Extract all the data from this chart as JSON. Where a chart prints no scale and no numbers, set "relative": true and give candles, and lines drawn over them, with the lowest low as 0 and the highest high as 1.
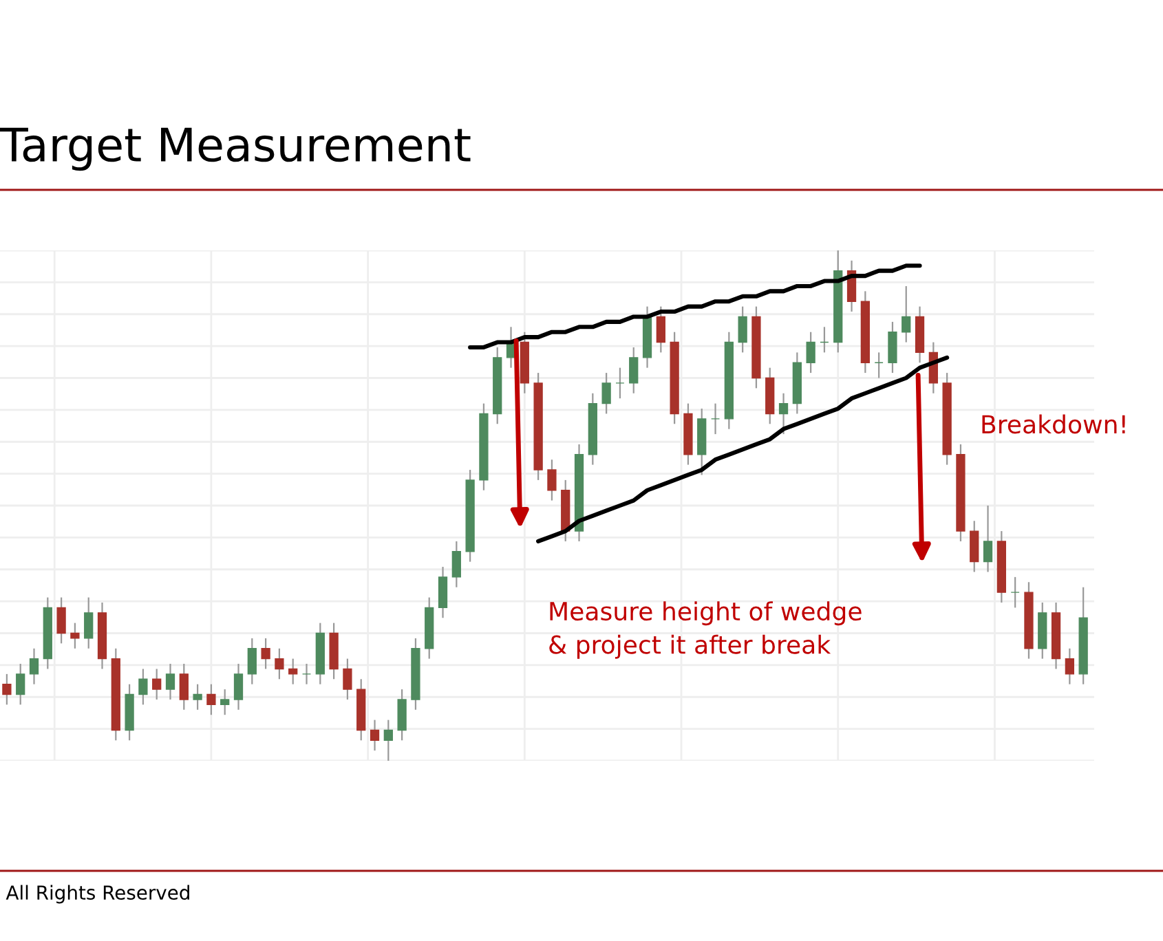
{
  "chart_data": {
    "type": "candlestick",
    "title": "Target Measurement",
    "relative": true,
    "grid": true,
    "annotations": [
      "Measure height of wedge\n& project it after break",
      "Breakdown!",
      "All Rights Reserved"
    ],
    "categories": [
      null,
      null,
      null,
      null,
      null,
      null,
      null,
      null,
      null,
      null,
      null,
      null,
      null,
      null,
      null,
      null,
      null,
      null,
      null,
      null,
      null,
      null,
      null,
      null,
      null,
      null,
      null,
      null,
      null,
      null,
      null,
      null,
      null,
      null,
      null,
      null,
      null,
      null,
      null,
      null,
      null,
      null,
      null,
      null,
      null,
      null,
      null,
      null,
      null,
      null,
      null,
      null,
      null,
      null,
      null,
      null,
      null,
      null,
      null,
      null,
      null,
      null,
      null,
      null,
      null,
      null,
      null,
      null,
      null,
      null,
      null,
      null,
      null,
      null,
      null,
      null,
      null,
      null,
      null,
      null
    ],
    "ohlc": [
      [
        0.15,
        0.17,
        0.11,
        0.13
      ],
      [
        0.13,
        0.19,
        0.11,
        0.17
      ],
      [
        0.17,
        0.22,
        0.15,
        0.2
      ],
      [
        0.2,
        0.32,
        0.18,
        0.3
      ],
      [
        0.3,
        0.32,
        0.23,
        0.25
      ],
      [
        0.25,
        0.27,
        0.22,
        0.24
      ],
      [
        0.24,
        0.32,
        0.22,
        0.29
      ],
      [
        0.29,
        0.31,
        0.18,
        0.2
      ],
      [
        0.2,
        0.22,
        0.04,
        0.06
      ],
      [
        0.06,
        0.15,
        0.04,
        0.13
      ],
      [
        0.13,
        0.18,
        0.11,
        0.16
      ],
      [
        0.16,
        0.18,
        0.12,
        0.14
      ],
      [
        0.14,
        0.19,
        0.12,
        0.17
      ],
      [
        0.17,
        0.19,
        0.1,
        0.12
      ],
      [
        0.12,
        0.15,
        0.1,
        0.13
      ],
      [
        0.13,
        0.15,
        0.09,
        0.11
      ],
      [
        0.11,
        0.14,
        0.09,
        0.12
      ],
      [
        0.12,
        0.19,
        0.1,
        0.17
      ],
      [
        0.17,
        0.24,
        0.15,
        0.22
      ],
      [
        0.22,
        0.24,
        0.18,
        0.2
      ],
      [
        0.2,
        0.22,
        0.16,
        0.18
      ],
      [
        0.18,
        0.2,
        0.15,
        0.17
      ],
      [
        0.17,
        0.19,
        0.15,
        0.17
      ],
      [
        0.17,
        0.27,
        0.15,
        0.25
      ],
      [
        0.25,
        0.27,
        0.16,
        0.18
      ],
      [
        0.18,
        0.2,
        0.12,
        0.14
      ],
      [
        0.14,
        0.16,
        0.04,
        0.06
      ],
      [
        0.06,
        0.08,
        0.02,
        0.04
      ],
      [
        0.04,
        0.08,
        0,
        0.06
      ],
      [
        0.06,
        0.14,
        0.04,
        0.12
      ],
      [
        0.12,
        0.24,
        0.1,
        0.22
      ],
      [
        0.22,
        0.32,
        0.2,
        0.3
      ],
      [
        0.3,
        0.38,
        0.28,
        0.36
      ],
      [
        0.36,
        0.43,
        0.34,
        0.41
      ],
      [
        0.41,
        0.57,
        0.39,
        0.55
      ],
      [
        0.55,
        0.7,
        0.53,
        0.68
      ],
      [
        0.68,
        0.81,
        0.66,
        0.79
      ],
      [
        0.79,
        0.85,
        0.77,
        0.82
      ],
      [
        0.82,
        0.84,
        0.72,
        0.74
      ],
      [
        0.74,
        0.76,
        0.55,
        0.57
      ],
      [
        0.57,
        0.59,
        0.51,
        0.53
      ],
      [
        0.53,
        0.55,
        0.43,
        0.45
      ],
      [
        0.45,
        0.62,
        0.43,
        0.6
      ],
      [
        0.6,
        0.72,
        0.58,
        0.7
      ],
      [
        0.7,
        0.76,
        0.68,
        0.74
      ],
      [
        0.74,
        0.77,
        0.71,
        0.74
      ],
      [
        0.74,
        0.81,
        0.72,
        0.79
      ],
      [
        0.79,
        0.89,
        0.77,
        0.87
      ],
      [
        0.87,
        0.89,
        0.8,
        0.82
      ],
      [
        0.82,
        0.84,
        0.66,
        0.68
      ],
      [
        0.68,
        0.7,
        0.58,
        0.6
      ],
      [
        0.6,
        0.69,
        0.56,
        0.67
      ],
      [
        0.67,
        0.7,
        0.64,
        0.67
      ],
      [
        0.67,
        0.84,
        0.65,
        0.82
      ],
      [
        0.82,
        0.89,
        0.8,
        0.87
      ],
      [
        0.87,
        0.89,
        0.73,
        0.75
      ],
      [
        0.75,
        0.77,
        0.66,
        0.68
      ],
      [
        0.68,
        0.72,
        0.64,
        0.7
      ],
      [
        0.7,
        0.8,
        0.68,
        0.78
      ],
      [
        0.78,
        0.84,
        0.76,
        0.82
      ],
      [
        0.82,
        0.85,
        0.8,
        0.82
      ],
      [
        0.82,
        1,
        0.8,
        0.96
      ],
      [
        0.96,
        0.98,
        0.88,
        0.9
      ],
      [
        0.9,
        0.92,
        0.76,
        0.78
      ],
      [
        0.78,
        0.8,
        0.75,
        0.78
      ],
      [
        0.78,
        0.86,
        0.76,
        0.84
      ],
      [
        0.84,
        0.93,
        0.82,
        0.87
      ],
      [
        0.87,
        0.89,
        0.78,
        0.8
      ],
      [
        0.8,
        0.82,
        0.72,
        0.74
      ],
      [
        0.74,
        0.76,
        0.58,
        0.6
      ],
      [
        0.6,
        0.62,
        0.43,
        0.45
      ],
      [
        0.45,
        0.47,
        0.37,
        0.39
      ],
      [
        0.39,
        0.5,
        0.37,
        0.43
      ],
      [
        0.43,
        0.45,
        0.31,
        0.33
      ],
      [
        0.33,
        0.36,
        0.3,
        0.33
      ],
      [
        0.33,
        0.35,
        0.2,
        0.22
      ],
      [
        0.22,
        0.31,
        0.2,
        0.29
      ],
      [
        0.29,
        0.31,
        0.18,
        0.2
      ],
      [
        0.2,
        0.22,
        0.15,
        0.17
      ],
      [
        0.17,
        0.34,
        0.15,
        0.28
      ]
    ],
    "series": [
      {
        "type": "line",
        "color": "#000000",
        "values": [
          null,
          null,
          null,
          null,
          null,
          null,
          null,
          null,
          null,
          null,
          null,
          null,
          null,
          null,
          null,
          null,
          null,
          null,
          null,
          null,
          null,
          null,
          null,
          null,
          null,
          null,
          null,
          null,
          null,
          null,
          null,
          null,
          null,
          null,
          0.81,
          0.81,
          0.82,
          0.82,
          0.83,
          0.83,
          0.84,
          0.84,
          0.85,
          0.85,
          0.86,
          0.86,
          0.87,
          0.87,
          0.88,
          0.88,
          0.89,
          0.89,
          0.9,
          0.9,
          0.91,
          0.91,
          0.92,
          0.92,
          0.93,
          0.93,
          0.94,
          0.94,
          0.95,
          0.95,
          0.96,
          0.96,
          0.97,
          0.97,
          null,
          null,
          null,
          null,
          null,
          null,
          null,
          null,
          null,
          null,
          null,
          null
        ]
      },
      {
        "type": "line",
        "color": "#000000",
        "values": [
          null,
          null,
          null,
          null,
          null,
          null,
          null,
          null,
          null,
          null,
          null,
          null,
          null,
          null,
          null,
          null,
          null,
          null,
          null,
          null,
          null,
          null,
          null,
          null,
          null,
          null,
          null,
          null,
          null,
          null,
          null,
          null,
          null,
          null,
          null,
          null,
          null,
          null,
          null,
          0.43,
          0.44,
          0.45,
          0.47,
          0.48,
          0.49,
          0.5,
          0.51,
          0.53,
          0.54,
          0.55,
          0.56,
          0.57,
          0.59,
          0.6,
          0.61,
          0.62,
          0.63,
          0.65,
          0.66,
          0.67,
          0.68,
          0.69,
          0.71,
          0.72,
          0.73,
          0.74,
          0.75,
          0.77,
          0.78,
          0.79,
          null,
          null,
          null,
          null,
          null,
          null,
          null,
          null,
          null,
          null
        ]
      }
    ]
  }
}
